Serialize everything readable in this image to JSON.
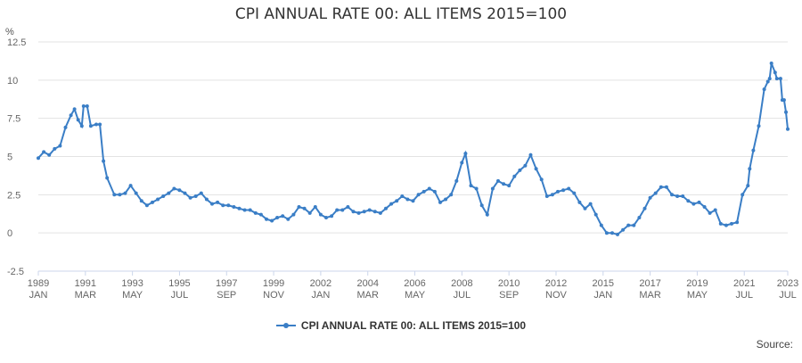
{
  "chart_data": {
    "type": "line",
    "title": "CPI ANNUAL RATE 00: ALL ITEMS 2015=100",
    "ylabel": "%",
    "ylim": [
      -2.5,
      12.5
    ],
    "yticks": [
      "12.5",
      "10",
      "7.5",
      "5",
      "2.5",
      "0",
      "-2.5"
    ],
    "xticks": [
      {
        "year": "1989",
        "month": "JAN"
      },
      {
        "year": "1991",
        "month": "MAR"
      },
      {
        "year": "1993",
        "month": "MAY"
      },
      {
        "year": "1995",
        "month": "JUL"
      },
      {
        "year": "1997",
        "month": "SEP"
      },
      {
        "year": "1999",
        "month": "NOV"
      },
      {
        "year": "2002",
        "month": "JAN"
      },
      {
        "year": "2004",
        "month": "MAR"
      },
      {
        "year": "2006",
        "month": "MAY"
      },
      {
        "year": "2008",
        "month": "JUL"
      },
      {
        "year": "2010",
        "month": "SEP"
      },
      {
        "year": "2012",
        "month": "NOV"
      },
      {
        "year": "2015",
        "month": "JAN"
      },
      {
        "year": "2017",
        "month": "MAR"
      },
      {
        "year": "2019",
        "month": "MAY"
      },
      {
        "year": "2021",
        "month": "JUL"
      },
      {
        "year": "2023",
        "month": "JUL"
      }
    ],
    "xlim": [
      "1989-01",
      "2023-07"
    ],
    "grid": "horizontal",
    "legend_position": "bottom",
    "series": [
      {
        "name": "CPI ANNUAL RATE 00: ALL ITEMS 2015=100",
        "color": "#3a7ec6",
        "points": [
          [
            "1989-01",
            4.9
          ],
          [
            "1989-04",
            5.3
          ],
          [
            "1989-07",
            5.1
          ],
          [
            "1989-10",
            5.5
          ],
          [
            "1990-01",
            5.7
          ],
          [
            "1990-04",
            6.9
          ],
          [
            "1990-07",
            7.7
          ],
          [
            "1990-09",
            8.1
          ],
          [
            "1990-11",
            7.4
          ],
          [
            "1991-01",
            7.0
          ],
          [
            "1991-02",
            8.3
          ],
          [
            "1991-04",
            8.3
          ],
          [
            "1991-06",
            7.0
          ],
          [
            "1991-09",
            7.1
          ],
          [
            "1991-11",
            7.1
          ],
          [
            "1992-01",
            4.7
          ],
          [
            "1992-03",
            3.6
          ],
          [
            "1992-07",
            2.5
          ],
          [
            "1992-10",
            2.5
          ],
          [
            "1993-01",
            2.6
          ],
          [
            "1993-04",
            3.1
          ],
          [
            "1993-07",
            2.6
          ],
          [
            "1993-10",
            2.1
          ],
          [
            "1994-01",
            1.8
          ],
          [
            "1994-04",
            2.0
          ],
          [
            "1994-07",
            2.2
          ],
          [
            "1994-10",
            2.4
          ],
          [
            "1995-01",
            2.6
          ],
          [
            "1995-04",
            2.9
          ],
          [
            "1995-07",
            2.8
          ],
          [
            "1995-10",
            2.6
          ],
          [
            "1996-01",
            2.3
          ],
          [
            "1996-04",
            2.4
          ],
          [
            "1996-07",
            2.6
          ],
          [
            "1996-10",
            2.2
          ],
          [
            "1997-01",
            1.9
          ],
          [
            "1997-04",
            2.0
          ],
          [
            "1997-07",
            1.8
          ],
          [
            "1997-10",
            1.8
          ],
          [
            "1998-01",
            1.7
          ],
          [
            "1998-04",
            1.6
          ],
          [
            "1998-07",
            1.5
          ],
          [
            "1998-10",
            1.5
          ],
          [
            "1999-01",
            1.3
          ],
          [
            "1999-04",
            1.2
          ],
          [
            "1999-07",
            0.9
          ],
          [
            "1999-10",
            0.8
          ],
          [
            "2000-01",
            1.0
          ],
          [
            "2000-04",
            1.1
          ],
          [
            "2000-07",
            0.9
          ],
          [
            "2000-10",
            1.2
          ],
          [
            "2001-01",
            1.7
          ],
          [
            "2001-04",
            1.6
          ],
          [
            "2001-07",
            1.3
          ],
          [
            "2001-10",
            1.7
          ],
          [
            "2002-01",
            1.2
          ],
          [
            "2002-04",
            1.0
          ],
          [
            "2002-07",
            1.1
          ],
          [
            "2002-10",
            1.5
          ],
          [
            "2003-01",
            1.5
          ],
          [
            "2003-04",
            1.7
          ],
          [
            "2003-07",
            1.4
          ],
          [
            "2003-10",
            1.3
          ],
          [
            "2004-01",
            1.4
          ],
          [
            "2004-04",
            1.5
          ],
          [
            "2004-07",
            1.4
          ],
          [
            "2004-10",
            1.3
          ],
          [
            "2005-01",
            1.6
          ],
          [
            "2005-04",
            1.9
          ],
          [
            "2005-07",
            2.1
          ],
          [
            "2005-10",
            2.4
          ],
          [
            "2006-01",
            2.2
          ],
          [
            "2006-04",
            2.1
          ],
          [
            "2006-07",
            2.5
          ],
          [
            "2006-10",
            2.7
          ],
          [
            "2007-01",
            2.9
          ],
          [
            "2007-04",
            2.7
          ],
          [
            "2007-07",
            2.0
          ],
          [
            "2007-10",
            2.2
          ],
          [
            "2008-01",
            2.5
          ],
          [
            "2008-04",
            3.4
          ],
          [
            "2008-07",
            4.6
          ],
          [
            "2008-09",
            5.2
          ],
          [
            "2008-12",
            3.1
          ],
          [
            "2009-03",
            2.9
          ],
          [
            "2009-06",
            1.8
          ],
          [
            "2009-09",
            1.2
          ],
          [
            "2009-12",
            2.9
          ],
          [
            "2010-03",
            3.4
          ],
          [
            "2010-06",
            3.2
          ],
          [
            "2010-09",
            3.1
          ],
          [
            "2010-12",
            3.7
          ],
          [
            "2011-03",
            4.1
          ],
          [
            "2011-06",
            4.4
          ],
          [
            "2011-09",
            5.1
          ],
          [
            "2011-12",
            4.2
          ],
          [
            "2012-03",
            3.5
          ],
          [
            "2012-06",
            2.4
          ],
          [
            "2012-09",
            2.5
          ],
          [
            "2012-12",
            2.7
          ],
          [
            "2013-03",
            2.8
          ],
          [
            "2013-06",
            2.9
          ],
          [
            "2013-09",
            2.6
          ],
          [
            "2013-12",
            2.0
          ],
          [
            "2014-03",
            1.6
          ],
          [
            "2014-06",
            1.9
          ],
          [
            "2014-09",
            1.2
          ],
          [
            "2014-12",
            0.5
          ],
          [
            "2015-03",
            0.0
          ],
          [
            "2015-06",
            0.0
          ],
          [
            "2015-09",
            -0.1
          ],
          [
            "2015-12",
            0.2
          ],
          [
            "2016-03",
            0.5
          ],
          [
            "2016-06",
            0.5
          ],
          [
            "2016-09",
            1.0
          ],
          [
            "2016-12",
            1.6
          ],
          [
            "2017-03",
            2.3
          ],
          [
            "2017-06",
            2.6
          ],
          [
            "2017-09",
            3.0
          ],
          [
            "2017-12",
            3.0
          ],
          [
            "2018-03",
            2.5
          ],
          [
            "2018-06",
            2.4
          ],
          [
            "2018-09",
            2.4
          ],
          [
            "2018-12",
            2.1
          ],
          [
            "2019-03",
            1.9
          ],
          [
            "2019-06",
            2.0
          ],
          [
            "2019-09",
            1.7
          ],
          [
            "2019-12",
            1.3
          ],
          [
            "2020-03",
            1.5
          ],
          [
            "2020-06",
            0.6
          ],
          [
            "2020-09",
            0.5
          ],
          [
            "2020-12",
            0.6
          ],
          [
            "2021-03",
            0.7
          ],
          [
            "2021-06",
            2.5
          ],
          [
            "2021-09",
            3.1
          ],
          [
            "2021-10",
            4.2
          ],
          [
            "2021-12",
            5.4
          ],
          [
            "2022-03",
            7.0
          ],
          [
            "2022-06",
            9.4
          ],
          [
            "2022-08",
            9.9
          ],
          [
            "2022-09",
            10.1
          ],
          [
            "2022-10",
            11.1
          ],
          [
            "2022-12",
            10.5
          ],
          [
            "2023-01",
            10.1
          ],
          [
            "2023-03",
            10.1
          ],
          [
            "2023-04",
            8.7
          ],
          [
            "2023-05",
            8.7
          ],
          [
            "2023-06",
            7.9
          ],
          [
            "2023-07",
            6.8
          ]
        ]
      }
    ]
  },
  "footer": {
    "source_label": "Source:"
  }
}
